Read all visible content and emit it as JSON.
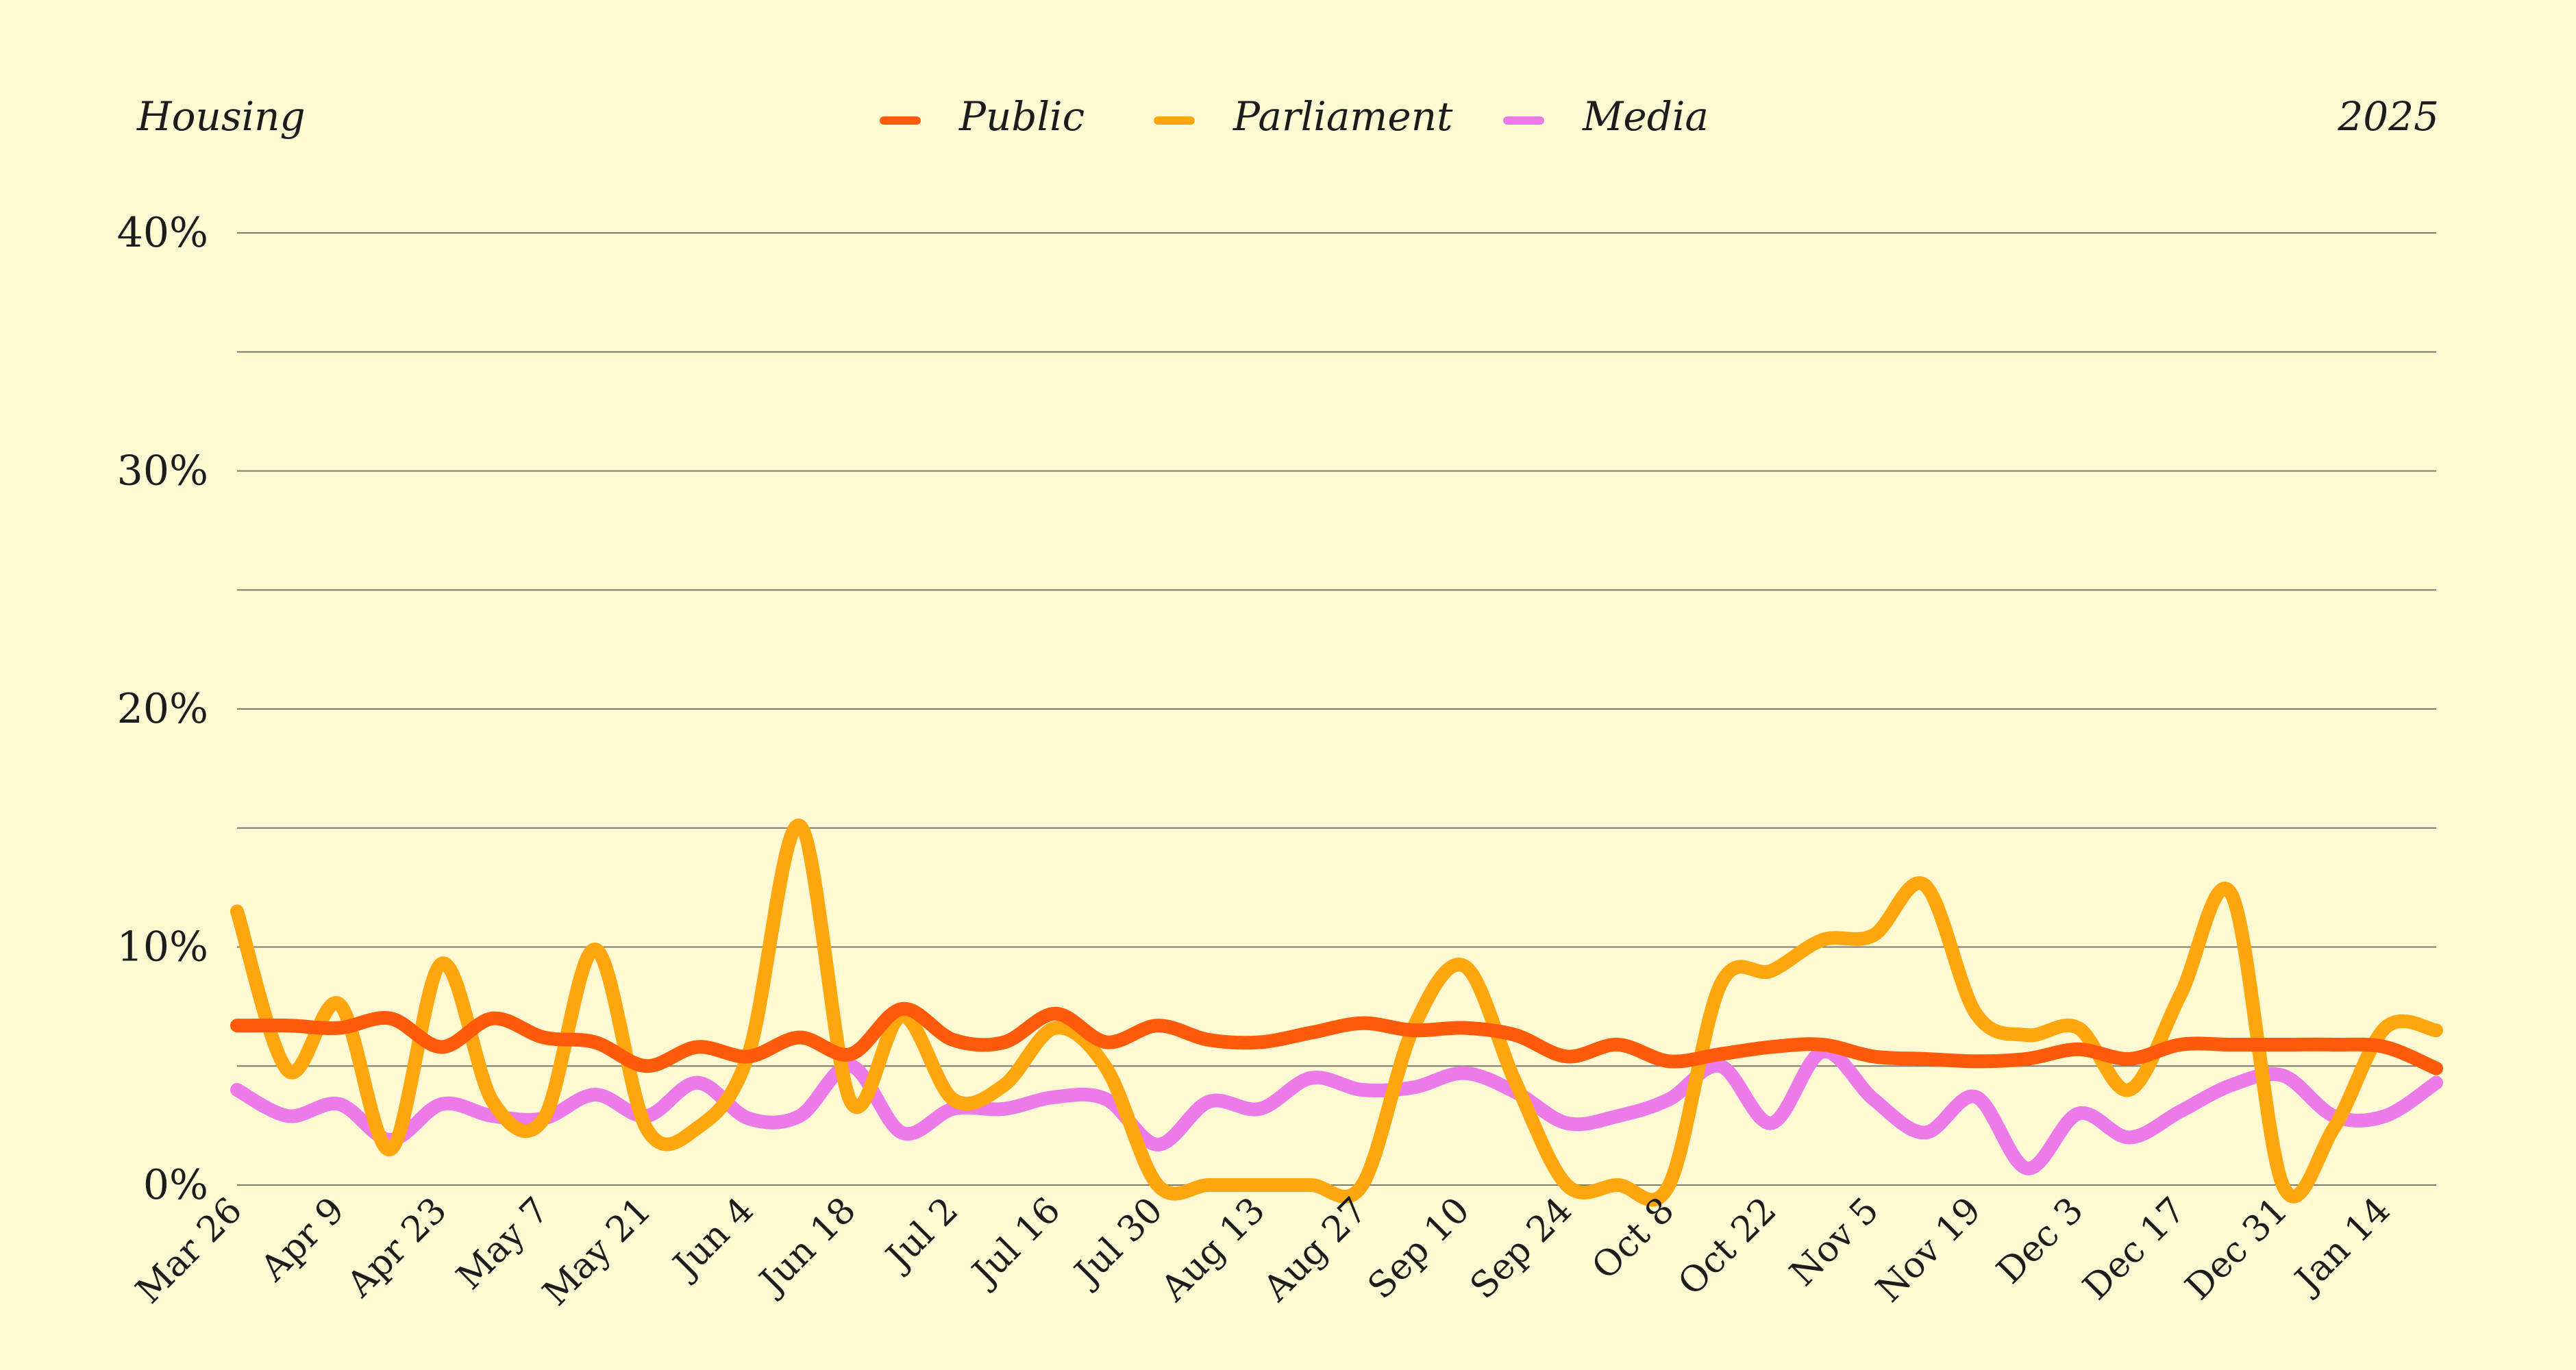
{
  "header": {
    "topic": "Housing",
    "year": "2025"
  },
  "chart_data": {
    "type": "line",
    "ylim": [
      0,
      40
    ],
    "yticks": [
      "0%",
      "10%",
      "20%",
      "30%",
      "40%"
    ],
    "grid": true,
    "legend_position": "top-center",
    "x_tick_labels": [
      "Mar 26",
      "Apr 9",
      "Apr 23",
      "May 7",
      "May 21",
      "Jun 4",
      "Jun 18",
      "Jul 2",
      "Jul 16",
      "Jul 30",
      "Aug 13",
      "Aug 27",
      "Sep 10",
      "Sep 24",
      "Oct 8",
      "Oct 22",
      "Nov 5",
      "Nov 19",
      "Dec 3",
      "Dec 17",
      "Dec 31",
      "Jan 14"
    ],
    "x": [
      "Mar 26",
      "Apr 2",
      "Apr 9",
      "Apr 16",
      "Apr 23",
      "Apr 30",
      "May 7",
      "May 14",
      "May 21",
      "May 28",
      "Jun 4",
      "Jun 11",
      "Jun 18",
      "Jun 25",
      "Jul 2",
      "Jul 9",
      "Jul 16",
      "Jul 23",
      "Jul 30",
      "Aug 6",
      "Aug 13",
      "Aug 20",
      "Aug 27",
      "Sep 3",
      "Sep 10",
      "Sep 17",
      "Sep 24",
      "Oct 1",
      "Oct 8",
      "Oct 15",
      "Oct 22",
      "Oct 29",
      "Nov 5",
      "Nov 12",
      "Nov 19",
      "Nov 26",
      "Dec 3",
      "Dec 10",
      "Dec 17",
      "Dec 24",
      "Dec 31",
      "Jan 7",
      "Jan 14",
      "Jan 21"
    ],
    "series": [
      {
        "name": "Public",
        "color": "#ff5a0a",
        "values": [
          6.7,
          6.7,
          6.6,
          7.0,
          5.8,
          7.0,
          6.2,
          6.0,
          5.0,
          5.8,
          5.4,
          6.2,
          5.5,
          7.4,
          6.1,
          6.0,
          7.2,
          6.0,
          6.7,
          6.1,
          6.0,
          6.4,
          6.8,
          6.5,
          6.6,
          6.3,
          5.4,
          5.9,
          5.2,
          5.5,
          5.8,
          5.9,
          5.4,
          5.3,
          5.2,
          5.3,
          5.7,
          5.3,
          5.9,
          5.9,
          5.9,
          5.9,
          5.8,
          4.9
        ]
      },
      {
        "name": "Parliament",
        "color": "#ffa60f",
        "values": [
          11.5,
          4.8,
          7.6,
          1.5,
          9.3,
          3.5,
          2.8,
          9.9,
          2.4,
          2.4,
          5.5,
          15.1,
          3.5,
          7.1,
          3.6,
          4.2,
          6.6,
          4.9,
          0.0,
          0.0,
          0.0,
          0.0,
          0.0,
          6.6,
          9.2,
          4.3,
          0.0,
          0.0,
          0.0,
          8.4,
          9.0,
          10.3,
          10.5,
          12.6,
          7.2,
          6.3,
          6.6,
          4.0,
          8.0,
          12.2,
          0.0,
          2.4,
          6.6,
          6.5
        ]
      },
      {
        "name": "Media",
        "color": "#ec7ae8",
        "values": [
          4.0,
          2.9,
          3.4,
          1.9,
          3.4,
          2.9,
          2.8,
          3.8,
          2.9,
          4.3,
          2.8,
          2.9,
          5.0,
          2.2,
          3.2,
          3.2,
          3.7,
          3.6,
          1.7,
          3.5,
          3.2,
          4.5,
          4.0,
          4.1,
          4.7,
          3.9,
          2.6,
          2.9,
          3.6,
          5.0,
          2.6,
          5.6,
          3.6,
          2.2,
          3.7,
          0.7,
          3.0,
          2.0,
          3.1,
          4.2,
          4.6,
          2.9,
          2.9,
          4.3
        ]
      }
    ]
  }
}
